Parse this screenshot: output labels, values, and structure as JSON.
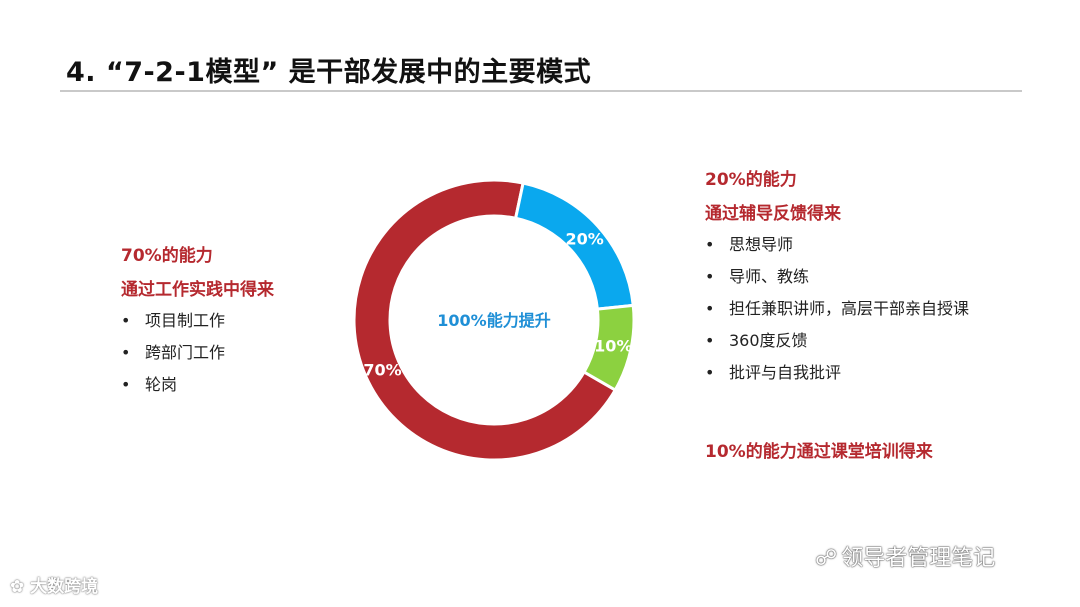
{
  "title": "4. “7-2-1模型” 是干部发展中的主要模式",
  "left": {
    "heading1": "70%的能力",
    "heading2": "通过工作实践中得来",
    "items": [
      "项目制工作",
      "跨部门工作",
      "轮岗"
    ]
  },
  "right": {
    "heading1": "20%的能力",
    "heading2": "通过辅导反馈得来",
    "items": [
      "思想导师",
      "导师、教练",
      "担任兼职讲师，高层干部亲自授课",
      "360度反馈",
      "批评与自我批评"
    ]
  },
  "bottom_note": "10%的能力通过课堂培训得来",
  "bullet_symbol": "•",
  "colors": {
    "accent_red": "#b5292f",
    "blue": "#0aa8ee",
    "green": "#8cd140",
    "center_text": "#1f8fd6"
  },
  "chart_data": {
    "type": "pie",
    "style": "donut",
    "center_label": "100%能力提升",
    "slices": [
      {
        "label": "70%",
        "value": 70,
        "color": "#b5292f"
      },
      {
        "label": "20%",
        "value": 20,
        "color": "#0aa8ee"
      },
      {
        "label": "10%",
        "value": 10,
        "color": "#8cd140"
      }
    ]
  },
  "watermarks": {
    "right": "领导者管理笔记",
    "right_icon": "wechat-icon",
    "left": "大数跨境",
    "left_icon": "logo-icon"
  }
}
